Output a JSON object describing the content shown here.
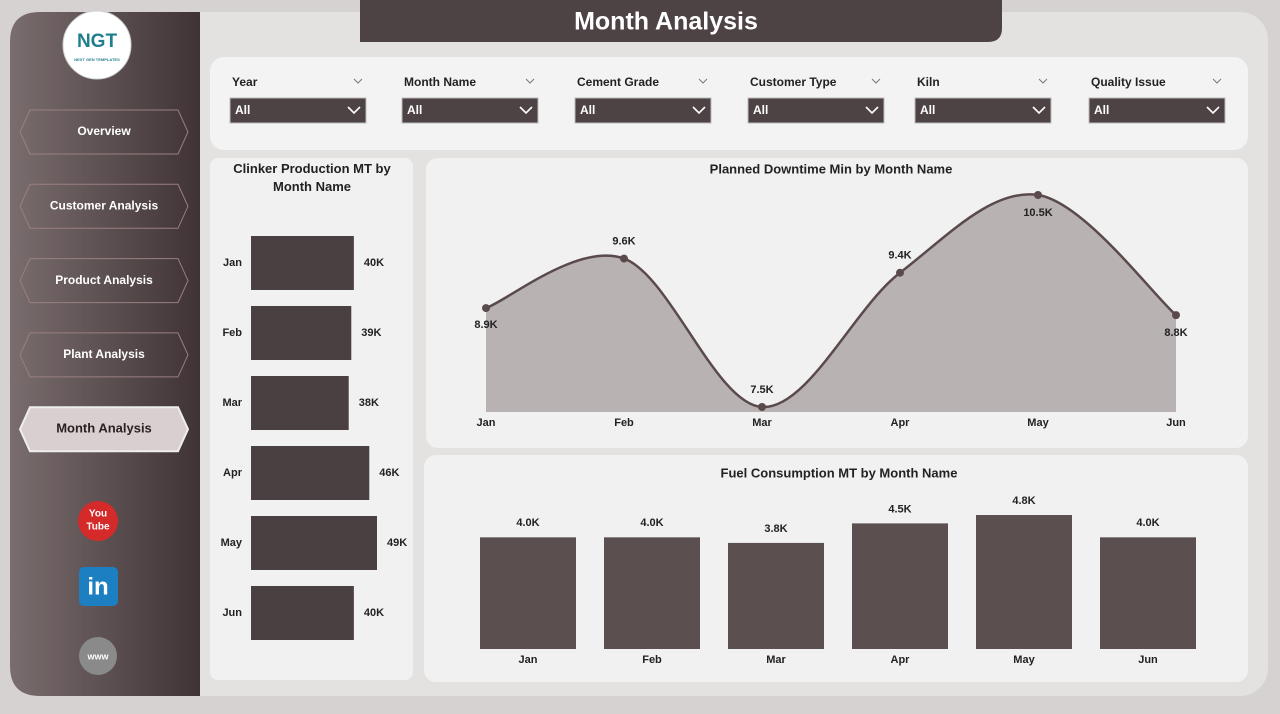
{
  "header": {
    "title": "Month Analysis"
  },
  "logo": {
    "text": "NGT",
    "subtitle": "NEXT GEN TEMPLATES"
  },
  "nav": [
    "Overview",
    "Customer Analysis",
    "Product Analysis",
    "Plant Analysis",
    "Month Analysis"
  ],
  "social": {
    "youtube": [
      "You",
      "Tube"
    ],
    "linkedin": "in",
    "web": "www"
  },
  "filters": [
    {
      "label": "Year",
      "value": "All"
    },
    {
      "label": "Month Name",
      "value": "All"
    },
    {
      "label": "Cement Grade",
      "value": "All"
    },
    {
      "label": "Customer Type",
      "value": "All"
    },
    {
      "label": "Kiln",
      "value": "All"
    },
    {
      "label": "Quality Issue",
      "value": "All"
    }
  ],
  "chart_data": [
    {
      "type": "hbar",
      "title": "Clinker Production MT by Month Name",
      "categories": [
        "Jan",
        "Feb",
        "Mar",
        "Apr",
        "May",
        "Jun"
      ],
      "values": [
        40000,
        39000,
        38000,
        46000,
        49000,
        40000
      ],
      "value_labels": [
        "40K",
        "39K",
        "38K",
        "46K",
        "49K",
        "40K"
      ],
      "color": "#4a3f41"
    },
    {
      "type": "area",
      "title": "Planned Downtime Min by Month Name",
      "categories": [
        "Jan",
        "Feb",
        "Mar",
        "Apr",
        "May",
        "Jun"
      ],
      "values": [
        8900,
        9600,
        7500,
        9400,
        10500,
        8800
      ],
      "value_labels": [
        "8.9K",
        "9.6K",
        "7.5K",
        "9.4K",
        "10.5K",
        "8.8K"
      ],
      "color": "#5a4a4c"
    },
    {
      "type": "bar",
      "title": "Fuel Consumption MT by Month Name",
      "categories": [
        "Jan",
        "Feb",
        "Mar",
        "Apr",
        "May",
        "Jun"
      ],
      "values": [
        4000,
        4000,
        3800,
        4500,
        4800,
        4000
      ],
      "value_labels": [
        "4.0K",
        "4.0K",
        "3.8K",
        "4.5K",
        "4.8K",
        "4.0K"
      ],
      "color": "#5c4f50"
    }
  ]
}
